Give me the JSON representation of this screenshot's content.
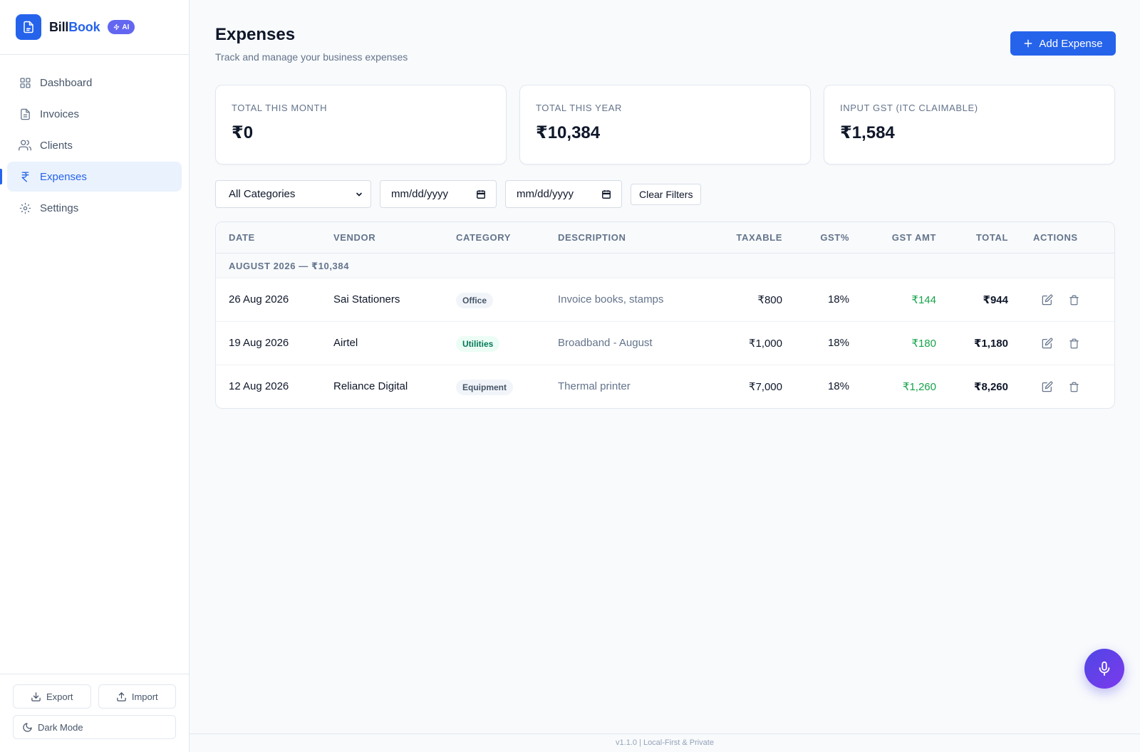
{
  "brand": {
    "name_part1": "Bill",
    "name_part2": "Book",
    "badge": "AI"
  },
  "sidebar": {
    "items": [
      {
        "label": "Dashboard",
        "icon": "grid-icon"
      },
      {
        "label": "Invoices",
        "icon": "file-icon"
      },
      {
        "label": "Clients",
        "icon": "users-icon"
      },
      {
        "label": "Expenses",
        "icon": "rupee-icon",
        "active": true
      },
      {
        "label": "Settings",
        "icon": "gear-icon"
      }
    ],
    "export_label": "Export",
    "import_label": "Import",
    "dark_mode_label": "Dark Mode"
  },
  "header": {
    "title": "Expenses",
    "subtitle": "Track and manage your business expenses",
    "add_button": "Add Expense"
  },
  "stats": [
    {
      "label": "TOTAL THIS MONTH",
      "value": "₹0"
    },
    {
      "label": "TOTAL THIS YEAR",
      "value": "₹10,384"
    },
    {
      "label": "INPUT GST (ITC CLAIMABLE)",
      "value": "₹1,584"
    }
  ],
  "filters": {
    "category_selected": "All Categories",
    "from_date_placeholder": "mm/dd/yyyy",
    "to_date_placeholder": "mm/dd/yyyy",
    "clear_label": "Clear Filters"
  },
  "table": {
    "columns": [
      "DATE",
      "VENDOR",
      "CATEGORY",
      "DESCRIPTION",
      "TAXABLE",
      "GST%",
      "GST AMT",
      "TOTAL",
      "ACTIONS"
    ],
    "group_label": "AUGUST 2026 — ₹10,384",
    "rows": [
      {
        "date": "26 Aug 2026",
        "vendor": "Sai Stationers",
        "category": "Office",
        "description": "Invoice books, stamps",
        "taxable": "₹800",
        "gst_pct": "18%",
        "gst_amt": "₹144",
        "total": "₹944"
      },
      {
        "date": "19 Aug 2026",
        "vendor": "Airtel",
        "category": "Utilities",
        "description": "Broadband - August",
        "taxable": "₹1,000",
        "gst_pct": "18%",
        "gst_amt": "₹180",
        "total": "₹1,180"
      },
      {
        "date": "12 Aug 2026",
        "vendor": "Reliance Digital",
        "category": "Equipment",
        "description": "Thermal printer",
        "taxable": "₹7,000",
        "gst_pct": "18%",
        "gst_amt": "₹1,260",
        "total": "₹8,260"
      }
    ]
  },
  "footer": {
    "version": "v1.1.0 | Local-First & Private"
  },
  "colors": {
    "accent": "#2563eb",
    "gst_green": "#16a34a",
    "mic_gradient_start": "#4f46e5",
    "mic_gradient_end": "#7c3aed"
  }
}
